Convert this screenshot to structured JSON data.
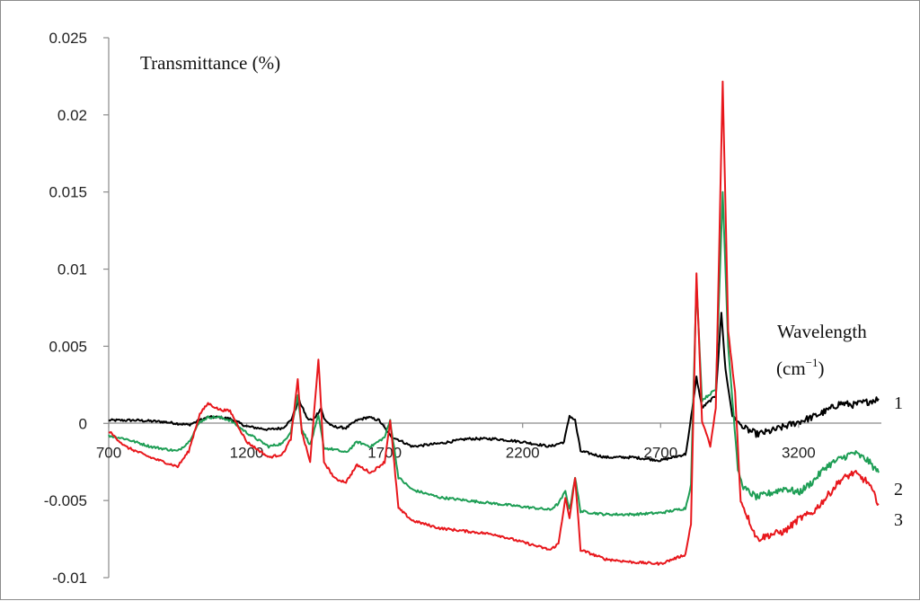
{
  "chart_data": {
    "type": "line",
    "y_axis_title": "Transmittance (%)",
    "x_axis_title_line1": "Wavelength",
    "x_axis_title_unit_base": "(cm",
    "x_axis_title_unit_exp": "−1",
    "x_axis_title_unit_close": ")",
    "xlim": [
      700,
      3500
    ],
    "ylim": [
      -0.01,
      0.025
    ],
    "x_ticks": [
      700,
      1200,
      1700,
      2200,
      2700,
      3200
    ],
    "x_tick_labels": [
      "700",
      "1200",
      "1700",
      "2200",
      "2700",
      "3200"
    ],
    "y_ticks": [
      -0.01,
      -0.005,
      0,
      0.005,
      0.01,
      0.015,
      0.02,
      0.025
    ],
    "y_tick_labels": [
      "-0.01",
      "-0.005",
      "0",
      "0.005",
      "0.01",
      "0.015",
      "0.02",
      "0.025"
    ],
    "grid": false,
    "series": [
      {
        "name": "1",
        "color": "#000000",
        "points": [
          [
            700,
            0.0002
          ],
          [
            800,
            0.0002
          ],
          [
            900,
            0.0001
          ],
          [
            990,
            -0.0001
          ],
          [
            1030,
            0.0002
          ],
          [
            1060,
            0.0004
          ],
          [
            1100,
            0.0004
          ],
          [
            1140,
            0.0003
          ],
          [
            1200,
            -0.0002
          ],
          [
            1280,
            -0.0004
          ],
          [
            1330,
            -0.0003
          ],
          [
            1360,
            0.0002
          ],
          [
            1390,
            0.0015
          ],
          [
            1420,
            0.0003
          ],
          [
            1440,
            0.0002
          ],
          [
            1470,
            0.001
          ],
          [
            1480,
            0.0003
          ],
          [
            1510,
            -0.0002
          ],
          [
            1560,
            -0.0003
          ],
          [
            1600,
            0.0002
          ],
          [
            1640,
            0.0004
          ],
          [
            1680,
            0.0002
          ],
          [
            1720,
            -0.0008
          ],
          [
            1800,
            -0.0015
          ],
          [
            1900,
            -0.0013
          ],
          [
            2000,
            -0.001
          ],
          [
            2100,
            -0.001
          ],
          [
            2200,
            -0.0012
          ],
          [
            2300,
            -0.0015
          ],
          [
            2350,
            -0.0012
          ],
          [
            2370,
            0.0005
          ],
          [
            2390,
            0.0002
          ],
          [
            2410,
            -0.0018
          ],
          [
            2500,
            -0.0022
          ],
          [
            2600,
            -0.0022
          ],
          [
            2700,
            -0.0024
          ],
          [
            2790,
            -0.002
          ],
          [
            2800,
            -0.001
          ],
          [
            2830,
            0.003
          ],
          [
            2850,
            0.001
          ],
          [
            2900,
            0.0018
          ],
          [
            2920,
            0.0072
          ],
          [
            2935,
            0.0035
          ],
          [
            2960,
            0.0005
          ],
          [
            3000,
            -0.0003
          ],
          [
            3050,
            -0.0007
          ],
          [
            3100,
            -0.0005
          ],
          [
            3150,
            -0.0002
          ],
          [
            3250,
            0.0004
          ],
          [
            3300,
            0.0008
          ],
          [
            3350,
            0.0013
          ],
          [
            3400,
            0.0012
          ],
          [
            3450,
            0.0014
          ],
          [
            3490,
            0.0016
          ]
        ]
      },
      {
        "name": "2",
        "color": "#1e9e55",
        "points": [
          [
            700,
            -0.0008
          ],
          [
            760,
            -0.001
          ],
          [
            850,
            -0.0015
          ],
          [
            950,
            -0.0018
          ],
          [
            990,
            -0.0012
          ],
          [
            1030,
            0.0001
          ],
          [
            1060,
            0.0004
          ],
          [
            1100,
            0.0004
          ],
          [
            1140,
            0.0002
          ],
          [
            1200,
            -0.0006
          ],
          [
            1280,
            -0.0015
          ],
          [
            1330,
            -0.0013
          ],
          [
            1360,
            -0.0005
          ],
          [
            1385,
            0.0018
          ],
          [
            1400,
            -0.0004
          ],
          [
            1430,
            -0.0014
          ],
          [
            1460,
            0.0005
          ],
          [
            1480,
            -0.0016
          ],
          [
            1520,
            -0.0017
          ],
          [
            1560,
            -0.0019
          ],
          [
            1600,
            -0.0012
          ],
          [
            1650,
            -0.0015
          ],
          [
            1700,
            -0.0009
          ],
          [
            1720,
            0.0002
          ],
          [
            1750,
            -0.0035
          ],
          [
            1800,
            -0.0043
          ],
          [
            1900,
            -0.0048
          ],
          [
            2000,
            -0.005
          ],
          [
            2100,
            -0.0052
          ],
          [
            2200,
            -0.0054
          ],
          [
            2300,
            -0.0056
          ],
          [
            2330,
            -0.0052
          ],
          [
            2355,
            -0.0044
          ],
          [
            2370,
            -0.0056
          ],
          [
            2390,
            -0.0035
          ],
          [
            2410,
            -0.0057
          ],
          [
            2500,
            -0.0059
          ],
          [
            2600,
            -0.0059
          ],
          [
            2700,
            -0.0058
          ],
          [
            2790,
            -0.0055
          ],
          [
            2810,
            -0.004
          ],
          [
            2830,
            0.0092
          ],
          [
            2850,
            0.0015
          ],
          [
            2900,
            0.0022
          ],
          [
            2925,
            0.015
          ],
          [
            2945,
            0.005
          ],
          [
            2980,
            -0.003
          ],
          [
            3000,
            -0.0042
          ],
          [
            3050,
            -0.0048
          ],
          [
            3100,
            -0.0045
          ],
          [
            3150,
            -0.0042
          ],
          [
            3200,
            -0.0045
          ],
          [
            3250,
            -0.0038
          ],
          [
            3300,
            -0.0028
          ],
          [
            3350,
            -0.0023
          ],
          [
            3400,
            -0.0019
          ],
          [
            3450,
            -0.0024
          ],
          [
            3490,
            -0.0032
          ]
        ]
      },
      {
        "name": "3",
        "color": "#e8171c",
        "points": [
          [
            700,
            -0.0005
          ],
          [
            760,
            -0.0015
          ],
          [
            850,
            -0.0022
          ],
          [
            950,
            -0.0028
          ],
          [
            990,
            -0.0018
          ],
          [
            1030,
            0.0006
          ],
          [
            1060,
            0.0013
          ],
          [
            1100,
            0.0009
          ],
          [
            1140,
            0.0008
          ],
          [
            1200,
            -0.0012
          ],
          [
            1280,
            -0.0022
          ],
          [
            1330,
            -0.002
          ],
          [
            1360,
            -0.001
          ],
          [
            1385,
            0.0028
          ],
          [
            1400,
            -0.0006
          ],
          [
            1430,
            -0.0025
          ],
          [
            1460,
            0.0042
          ],
          [
            1480,
            -0.0025
          ],
          [
            1520,
            -0.0036
          ],
          [
            1560,
            -0.0038
          ],
          [
            1600,
            -0.0027
          ],
          [
            1650,
            -0.0032
          ],
          [
            1700,
            -0.0025
          ],
          [
            1720,
            0.0002
          ],
          [
            1750,
            -0.0055
          ],
          [
            1800,
            -0.0063
          ],
          [
            1900,
            -0.0068
          ],
          [
            2000,
            -0.007
          ],
          [
            2100,
            -0.0072
          ],
          [
            2200,
            -0.0077
          ],
          [
            2300,
            -0.0082
          ],
          [
            2330,
            -0.0078
          ],
          [
            2355,
            -0.0048
          ],
          [
            2370,
            -0.0062
          ],
          [
            2390,
            -0.0035
          ],
          [
            2410,
            -0.0082
          ],
          [
            2500,
            -0.0088
          ],
          [
            2600,
            -0.009
          ],
          [
            2700,
            -0.0091
          ],
          [
            2790,
            -0.0085
          ],
          [
            2810,
            -0.0065
          ],
          [
            2830,
            0.0097
          ],
          [
            2850,
            0.0002
          ],
          [
            2880,
            -0.0015
          ],
          [
            2900,
            0.001
          ],
          [
            2925,
            0.0221
          ],
          [
            2945,
            0.006
          ],
          [
            2970,
            0.002
          ],
          [
            2990,
            -0.005
          ],
          [
            3050,
            -0.0075
          ],
          [
            3100,
            -0.0072
          ],
          [
            3150,
            -0.007
          ],
          [
            3200,
            -0.0062
          ],
          [
            3250,
            -0.0058
          ],
          [
            3300,
            -0.0048
          ],
          [
            3350,
            -0.0037
          ],
          [
            3400,
            -0.0032
          ],
          [
            3450,
            -0.0038
          ],
          [
            3490,
            -0.0052
          ]
        ]
      }
    ]
  }
}
